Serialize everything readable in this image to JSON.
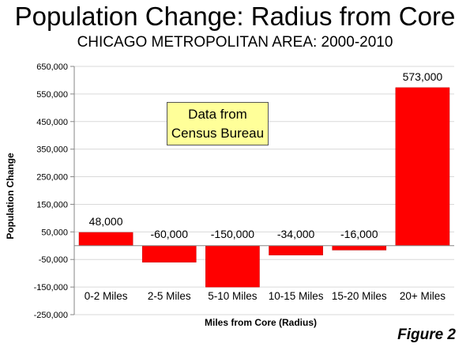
{
  "title": "Population Change: Radius from Core",
  "subtitle": "CHICAGO METROPOLITAN AREA: 2000-2010",
  "note": {
    "line1": "Data from",
    "line2": "Census Bureau"
  },
  "figure_label": "Figure 2",
  "colors": {
    "bar": "#ff0000",
    "grid": "#d9d9d9",
    "axis": "#868686",
    "note_bg": "#ffff99"
  },
  "chart_data": {
    "type": "bar",
    "title": "Population Change: Radius from Core",
    "subtitle": "CHICAGO METROPOLITAN AREA: 2000-2010",
    "xlabel": "Miles from Core (Radius)",
    "ylabel": "Population Change",
    "categories": [
      "0-2 Miles",
      "2-5 Miles",
      "5-10 Miles",
      "10-15 Miles",
      "15-20 Miles",
      "20+ Miles"
    ],
    "values": [
      48000,
      -60000,
      -150000,
      -34000,
      -16000,
      573000
    ],
    "data_labels": [
      "48,000",
      "-60,000",
      "-150,000",
      "-34,000",
      "-16,000",
      "573,000"
    ],
    "ylim": [
      -250000,
      650000
    ],
    "yticks": [
      650000,
      550000,
      450000,
      350000,
      250000,
      150000,
      50000,
      -50000,
      -150000,
      -250000
    ],
    "ytick_labels": [
      "650,000",
      "550,000",
      "450,000",
      "350,000",
      "250,000",
      "150,000",
      "50,000",
      "-50,000",
      "-150,000",
      "-250,000"
    ],
    "grid": true,
    "legend": "none"
  }
}
